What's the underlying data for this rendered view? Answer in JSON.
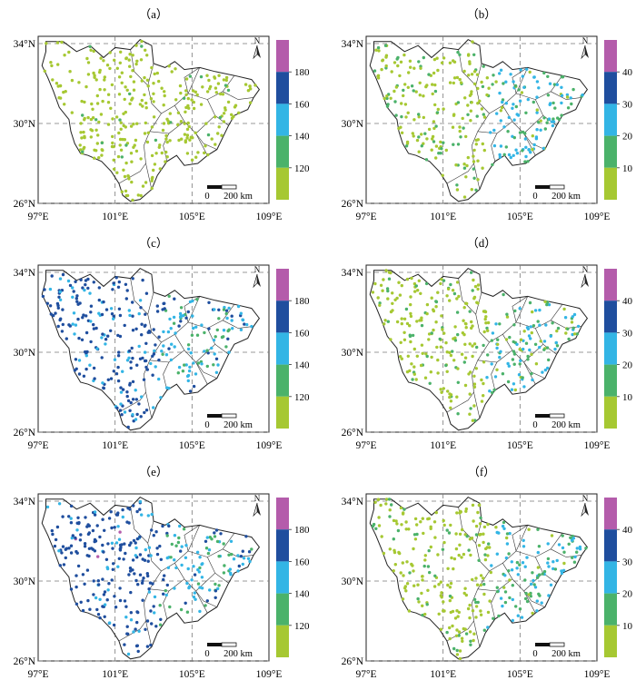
{
  "figure": {
    "panels": [
      {
        "label": "（a）",
        "scale": "time",
        "mode": "A",
        "seed": 11
      },
      {
        "label": "（b）",
        "scale": "length",
        "mode": "B",
        "seed": 23
      },
      {
        "label": "（c）",
        "scale": "time",
        "mode": "C",
        "seed": 37
      },
      {
        "label": "（d）",
        "scale": "length",
        "mode": "D",
        "seed": 41
      },
      {
        "label": "（e）",
        "scale": "time",
        "mode": "E",
        "seed": 53
      },
      {
        "label": "（f）",
        "scale": "length",
        "mode": "F",
        "seed": 67
      }
    ],
    "x_ticks": [
      "97°E",
      "101°E",
      "105°E",
      "109°E"
    ],
    "y_ticks": [
      "34°N",
      "30°N",
      "26°N"
    ],
    "scales": {
      "time": {
        "labels": [
          "120",
          "140",
          "160",
          "180"
        ]
      },
      "length": {
        "labels": [
          "10",
          "20",
          "30",
          "40"
        ]
      }
    },
    "legend_colors": [
      "#a6c832",
      "#4bb26a",
      "#33b5e5",
      "#1f4e9e",
      "#b45cab"
    ],
    "scale_bar": {
      "zero": "0",
      "length": "200 km"
    },
    "north_arrow": "N"
  }
}
